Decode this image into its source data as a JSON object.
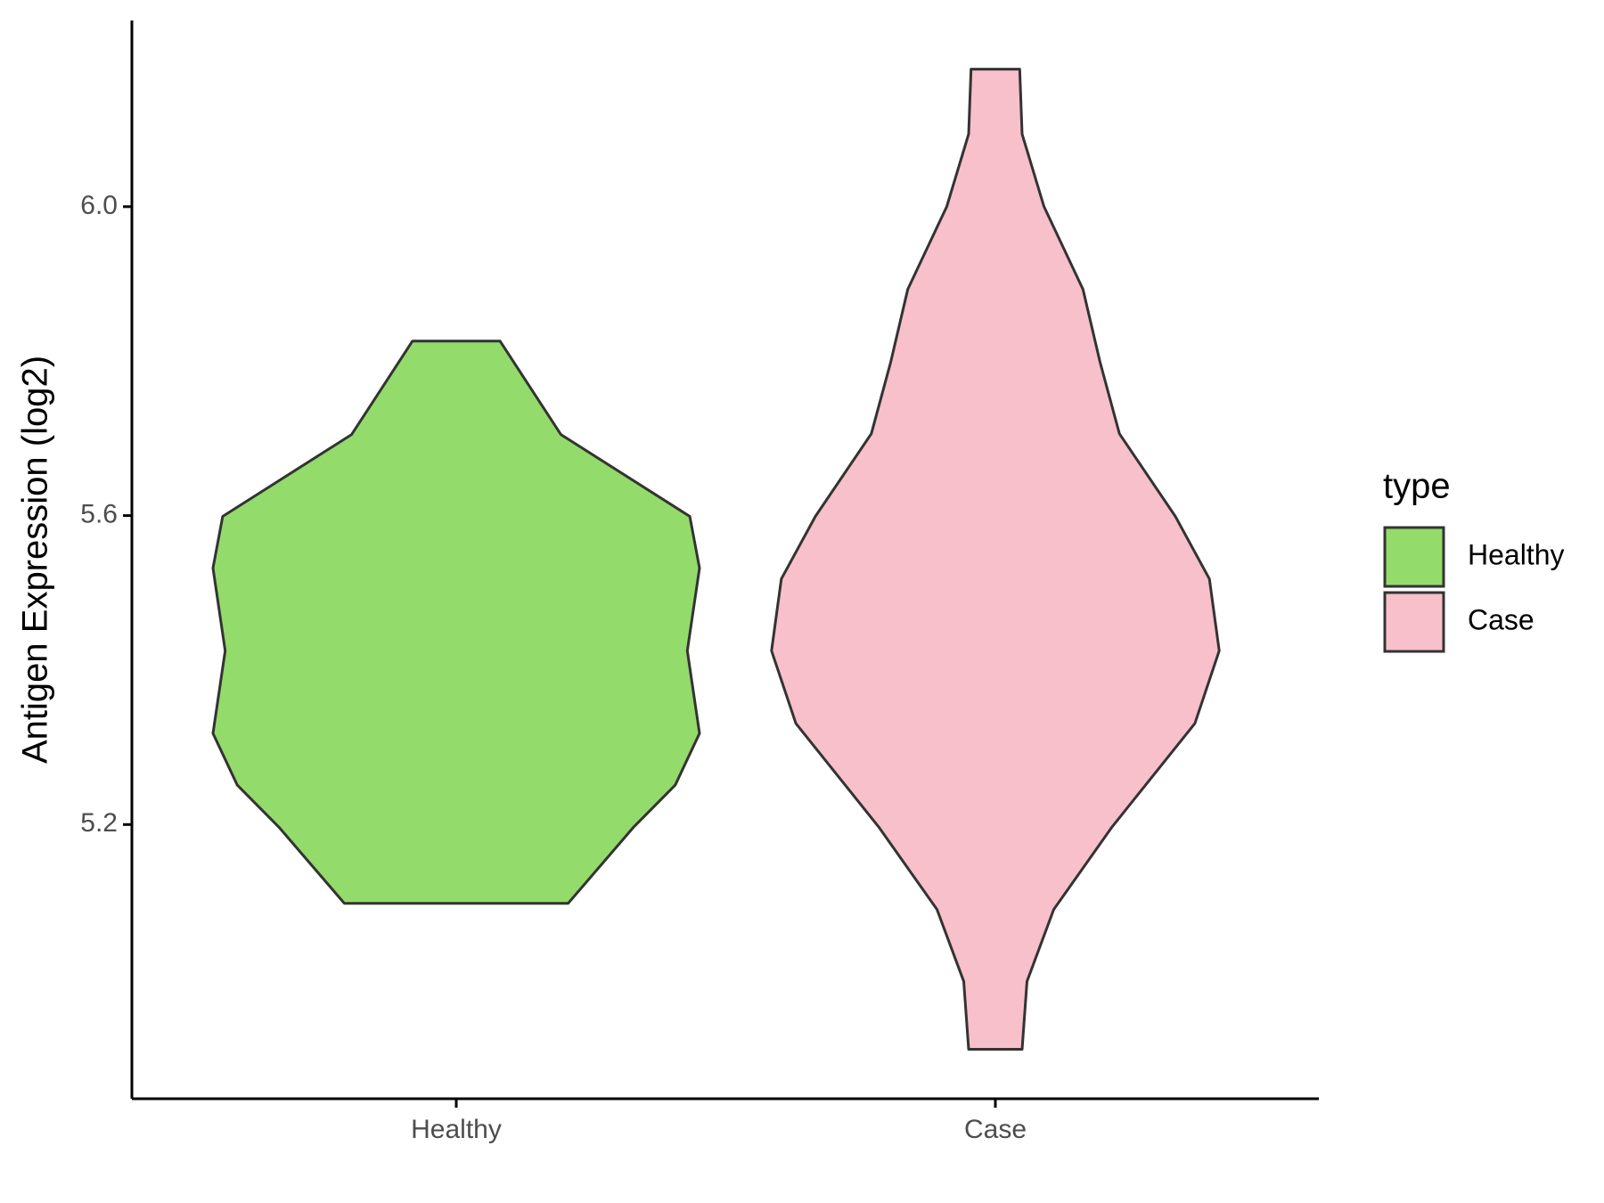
{
  "chart_data": {
    "type": "violin",
    "y_label": "Antigen Expression (log2)",
    "categories": [
      "Healthy",
      "Case"
    ],
    "legend_title": "type",
    "legend_position": "right",
    "ylim": [
      4.845,
      6.241
    ],
    "yticks": [
      5.2,
      5.6,
      {
        "value": 6,
        "label": "6.0"
      }
    ],
    "series": [
      {
        "name": "Healthy",
        "color": "#93db6a",
        "y": [
          5.826,
          5.705,
          5.599,
          5.532,
          5.425,
          5.318,
          5.251,
          5.197,
          5.098
        ],
        "width": [
          0.18,
          0.43,
          0.96,
          1.0,
          0.95,
          1.0,
          0.9,
          0.73,
          0.46
        ]
      },
      {
        "name": "Case",
        "color": "#f7c0cb",
        "y": [
          6.178,
          6.094,
          6.0,
          5.893,
          5.799,
          5.706,
          5.599,
          5.518,
          5.425,
          5.331,
          5.197,
          5.09,
          4.997,
          4.909
        ],
        "width": [
          0.1,
          0.11,
          0.2,
          0.36,
          0.43,
          0.51,
          0.74,
          0.88,
          0.92,
          0.82,
          0.48,
          0.24,
          0.13,
          0.11
        ]
      }
    ]
  }
}
